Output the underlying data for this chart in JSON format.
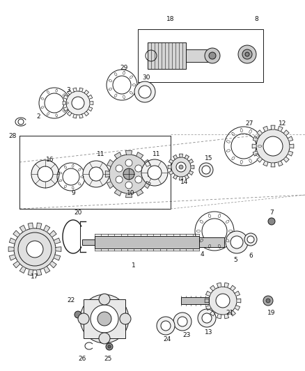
{
  "bg_color": "#ffffff",
  "line_color": "#1a1a1a",
  "fig_width": 4.38,
  "fig_height": 5.33,
  "dpi": 100,
  "label_fontsize": 6.5,
  "label_color": "#111111"
}
